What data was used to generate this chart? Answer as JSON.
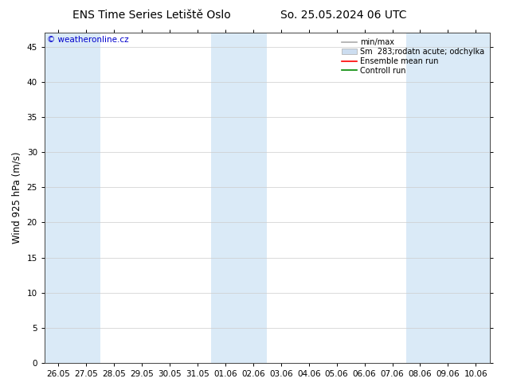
{
  "title_left": "ENS Time Series Letiště Oslo",
  "title_right": "So. 25.05.2024 06 UTC",
  "ylabel": "Wind 925 hPa (m/s)",
  "watermark": "© weatheronline.cz",
  "watermark_color": "#0000cc",
  "ylim": [
    0,
    47
  ],
  "yticks": [
    0,
    5,
    10,
    15,
    20,
    25,
    30,
    35,
    40,
    45
  ],
  "xtick_labels": [
    "26.05",
    "27.05",
    "28.05",
    "29.05",
    "30.05",
    "31.05",
    "01.06",
    "02.06",
    "03.06",
    "04.06",
    "05.06",
    "06.06",
    "07.06",
    "08.06",
    "09.06",
    "10.06"
  ],
  "background_color": "#ffffff",
  "plot_bg_color": "#ffffff",
  "band_color": "#daeaf7",
  "band_indices": [
    0,
    1,
    6,
    7,
    13,
    14,
    15
  ],
  "legend_labels": [
    "min/max",
    "Sm  283;rodatn acute; odchylka",
    "Ensemble mean run",
    "Controll run"
  ],
  "title_fontsize": 10,
  "tick_fontsize": 7.5,
  "ylabel_fontsize": 8.5
}
